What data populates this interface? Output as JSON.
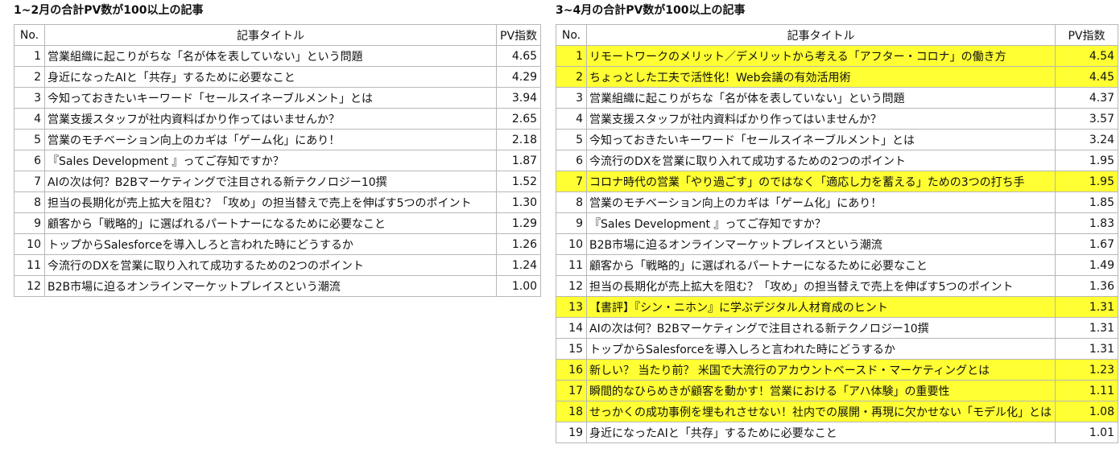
{
  "colors": {
    "highlight": "#ffff33",
    "grid": "#b7b7b7"
  },
  "left_table": {
    "heading": "1~2月の合計PV数が100以上の記事",
    "columns": {
      "no": "No.",
      "title": "記事タイトル",
      "pv": "PV指数"
    },
    "rows": [
      {
        "no": "1",
        "title": "営業組織に起こりがちな「名が体を表していない」という問題",
        "pv": "4.65",
        "highlight": false
      },
      {
        "no": "2",
        "title": "身近になったAIと「共存」するために必要なこと",
        "pv": "4.29",
        "highlight": false
      },
      {
        "no": "3",
        "title": "今知っておきたいキーワード「セールスイネーブルメント」とは",
        "pv": "3.94",
        "highlight": false
      },
      {
        "no": "4",
        "title": "営業支援スタッフが社内資料ばかり作ってはいませんか？",
        "pv": "2.65",
        "highlight": false
      },
      {
        "no": "5",
        "title": "営業のモチベーション向上のカギは「ゲーム化」にあり！",
        "pv": "2.18",
        "highlight": false
      },
      {
        "no": "6",
        "title": "『Sales Development 』ってご存知ですか？",
        "pv": "1.87",
        "highlight": false
      },
      {
        "no": "7",
        "title": "AIの次は何？B2Bマーケティングで注目される新テクノロジー10撰",
        "pv": "1.52",
        "highlight": false
      },
      {
        "no": "8",
        "title": "担当の長期化が売上拡大を阻む？「攻め」の担当替えで売上を伸ばす5つのポイント",
        "pv": "1.30",
        "highlight": false
      },
      {
        "no": "9",
        "title": "顧客から「戦略的」に選ばれるパートナーになるために必要なこと",
        "pv": "1.29",
        "highlight": false
      },
      {
        "no": "10",
        "title": "トップからSalesforceを導入しろと言われた時にどうするか",
        "pv": "1.26",
        "highlight": false
      },
      {
        "no": "11",
        "title": "今流行のDXを営業に取り入れて成功するための2つのポイント",
        "pv": "1.24",
        "highlight": false
      },
      {
        "no": "12",
        "title": "B2B市場に迫るオンラインマーケットプレイスという潮流",
        "pv": "1.00",
        "highlight": false
      }
    ]
  },
  "right_table": {
    "heading": "3~4月の合計PV数が100以上の記事",
    "columns": {
      "no": "No.",
      "title": "記事タイトル",
      "pv": "PV指数"
    },
    "rows": [
      {
        "no": "1",
        "title": "リモートワークのメリット／デメリットから考える「アフター・コロナ」の働き方",
        "pv": "4.54",
        "highlight": true
      },
      {
        "no": "2",
        "title": "ちょっとした工夫で活性化！Web会議の有効活用術",
        "pv": "4.45",
        "highlight": true
      },
      {
        "no": "3",
        "title": "営業組織に起こりがちな「名が体を表していない」という問題",
        "pv": "4.37",
        "highlight": false
      },
      {
        "no": "4",
        "title": "営業支援スタッフが社内資料ばかり作ってはいませんか？",
        "pv": "3.57",
        "highlight": false
      },
      {
        "no": "5",
        "title": "今知っておきたいキーワード「セールスイネーブルメント」とは",
        "pv": "3.24",
        "highlight": false
      },
      {
        "no": "6",
        "title": "今流行のDXを営業に取り入れて成功するための2つのポイント",
        "pv": "1.95",
        "highlight": false
      },
      {
        "no": "7",
        "title": "コロナ時代の営業「やり過ごす」のではなく「適応し力を蓄える」ための3つの打ち手",
        "pv": "1.95",
        "highlight": true
      },
      {
        "no": "8",
        "title": "営業のモチベーション向上のカギは「ゲーム化」にあり！",
        "pv": "1.85",
        "highlight": false
      },
      {
        "no": "9",
        "title": "『Sales Development 』ってご存知ですか？",
        "pv": "1.83",
        "highlight": false
      },
      {
        "no": "10",
        "title": "B2B市場に迫るオンラインマーケットプレイスという潮流",
        "pv": "1.67",
        "highlight": false
      },
      {
        "no": "11",
        "title": "顧客から「戦略的」に選ばれるパートナーになるために必要なこと",
        "pv": "1.49",
        "highlight": false
      },
      {
        "no": "12",
        "title": "担当の長期化が売上拡大を阻む？「攻め」の担当替えで売上を伸ばす5つのポイント",
        "pv": "1.36",
        "highlight": false
      },
      {
        "no": "13",
        "title": "【書評】『シン・ニホン』に学ぶデジタル人材育成のヒント",
        "pv": "1.31",
        "highlight": true
      },
      {
        "no": "14",
        "title": "AIの次は何？B2Bマーケティングで注目される新テクノロジー10撰",
        "pv": "1.31",
        "highlight": false
      },
      {
        "no": "15",
        "title": "トップからSalesforceを導入しろと言われた時にどうするか",
        "pv": "1.31",
        "highlight": false
      },
      {
        "no": "16",
        "title": "新しい？ 当たり前？ 米国で大流行のアカウントベースド・マーケティングとは",
        "pv": "1.23",
        "highlight": true
      },
      {
        "no": "17",
        "title": "瞬間的なひらめきが顧客を動かす！営業における「アハ体験」の重要性",
        "pv": "1.11",
        "highlight": true
      },
      {
        "no": "18",
        "title": "せっかくの成功事例を埋もれさせない！社内での展開・再現に欠かせない「モデル化」とは",
        "pv": "1.08",
        "highlight": true
      },
      {
        "no": "19",
        "title": "身近になったAIと「共存」するために必要なこと",
        "pv": "1.01",
        "highlight": false
      }
    ]
  }
}
